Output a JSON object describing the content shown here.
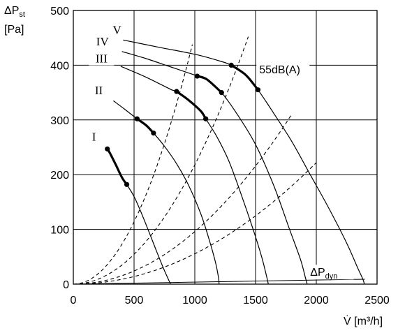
{
  "chart_data": {
    "type": "line",
    "y_axis_label": {
      "main": "ΔP",
      "sub": "st",
      "unit": "[Pa]"
    },
    "x_axis_label": {
      "main": "V̇",
      "unit": "[m³/h]"
    },
    "xlim": [
      0,
      2500
    ],
    "ylim": [
      0,
      500
    ],
    "x_ticks": [
      0,
      500,
      1000,
      1500,
      2000,
      2500
    ],
    "y_ticks": [
      0,
      100,
      200,
      300,
      400,
      500
    ],
    "grid": true,
    "series": [
      {
        "name": "I",
        "kind": "fan_curve",
        "x": [
          280,
          300,
          350,
          400,
          440,
          500,
          560,
          620,
          680,
          740,
          790,
          800
        ],
        "y": [
          247,
          240,
          218,
          195,
          182,
          160,
          130,
          97,
          63,
          30,
          5,
          0
        ],
        "bold": [
          0,
          4
        ]
      },
      {
        "name": "II",
        "kind": "fan_curve",
        "x": [
          330,
          420,
          525,
          600,
          660,
          750,
          850,
          950,
          1050,
          1120,
          1170,
          1195,
          1200
        ],
        "y": [
          335,
          320,
          302,
          290,
          276,
          252,
          220,
          180,
          128,
          80,
          40,
          12,
          0
        ],
        "bold": [
          2,
          4
        ]
      },
      {
        "name": "III",
        "kind": "fan_curve",
        "x": [
          390,
          600,
          800,
          850,
          950,
          1050,
          1090,
          1180,
          1280,
          1380,
          1480,
          1550,
          1590,
          1605
        ],
        "y": [
          398,
          378,
          356,
          352,
          336,
          316,
          302,
          270,
          225,
          165,
          100,
          50,
          15,
          0
        ],
        "bold": [
          3,
          6
        ]
      },
      {
        "name": "IV",
        "kind": "fan_curve",
        "x": [
          400,
          600,
          800,
          1000,
          1020,
          1100,
          1220,
          1350,
          1500,
          1650,
          1780,
          1870,
          1910,
          1925
        ],
        "y": [
          425,
          412,
          397,
          382,
          380,
          374,
          350,
          310,
          255,
          180,
          100,
          45,
          12,
          0
        ],
        "bold": [
          4,
          6
        ]
      },
      {
        "name": "V",
        "kind": "fan_curve",
        "x": [
          410,
          700,
          1000,
          1200,
          1300,
          1420,
          1520,
          1650,
          1800,
          1950,
          2100,
          2250,
          2340,
          2385,
          2395
        ],
        "y": [
          446,
          433,
          420,
          408,
          400,
          382,
          355,
          312,
          260,
          200,
          140,
          75,
          30,
          8,
          0
        ],
        "bold": [
          4,
          6
        ]
      },
      {
        "name": "",
        "kind": "system_curve",
        "k": 0.000456,
        "xmax": 980
      },
      {
        "name": "",
        "kind": "system_curve",
        "k": 0.000218,
        "xmax": 1440
      },
      {
        "name": "",
        "kind": "system_curve",
        "k": 9.6e-05,
        "xmax": 1790
      },
      {
        "name": "",
        "kind": "system_curve",
        "k": 5.55e-05,
        "xmax": 2000
      }
    ],
    "dynamic_pressure": {
      "x": [
        0,
        2400
      ],
      "y": [
        0,
        9
      ]
    },
    "annotations": [
      {
        "text": "55dB(A)",
        "x": 1530,
        "y": 385
      },
      {
        "text": "ΔP",
        "sub": "dyn",
        "x": 1950,
        "y": 15
      }
    ]
  }
}
